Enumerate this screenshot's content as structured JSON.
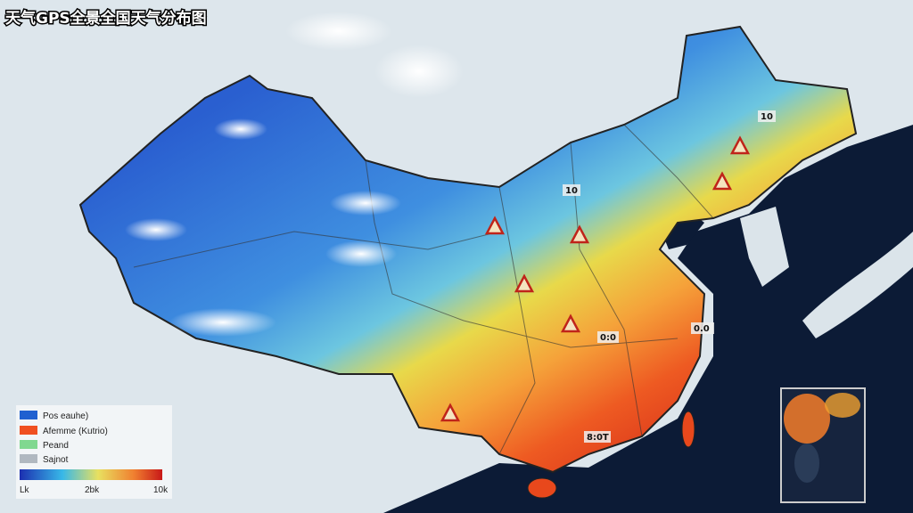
{
  "title": "天气GPS全景全国天气分布图",
  "map_labels": [
    "10",
    "10",
    "0.0",
    "0:0",
    "8:0T"
  ],
  "legend": {
    "items": [
      "Pos eauhe)",
      "Afemme (Kutrio)",
      "Peand",
      "Sajnot"
    ],
    "scale_labels": [
      "Lk",
      "2bk",
      "10k"
    ]
  }
}
